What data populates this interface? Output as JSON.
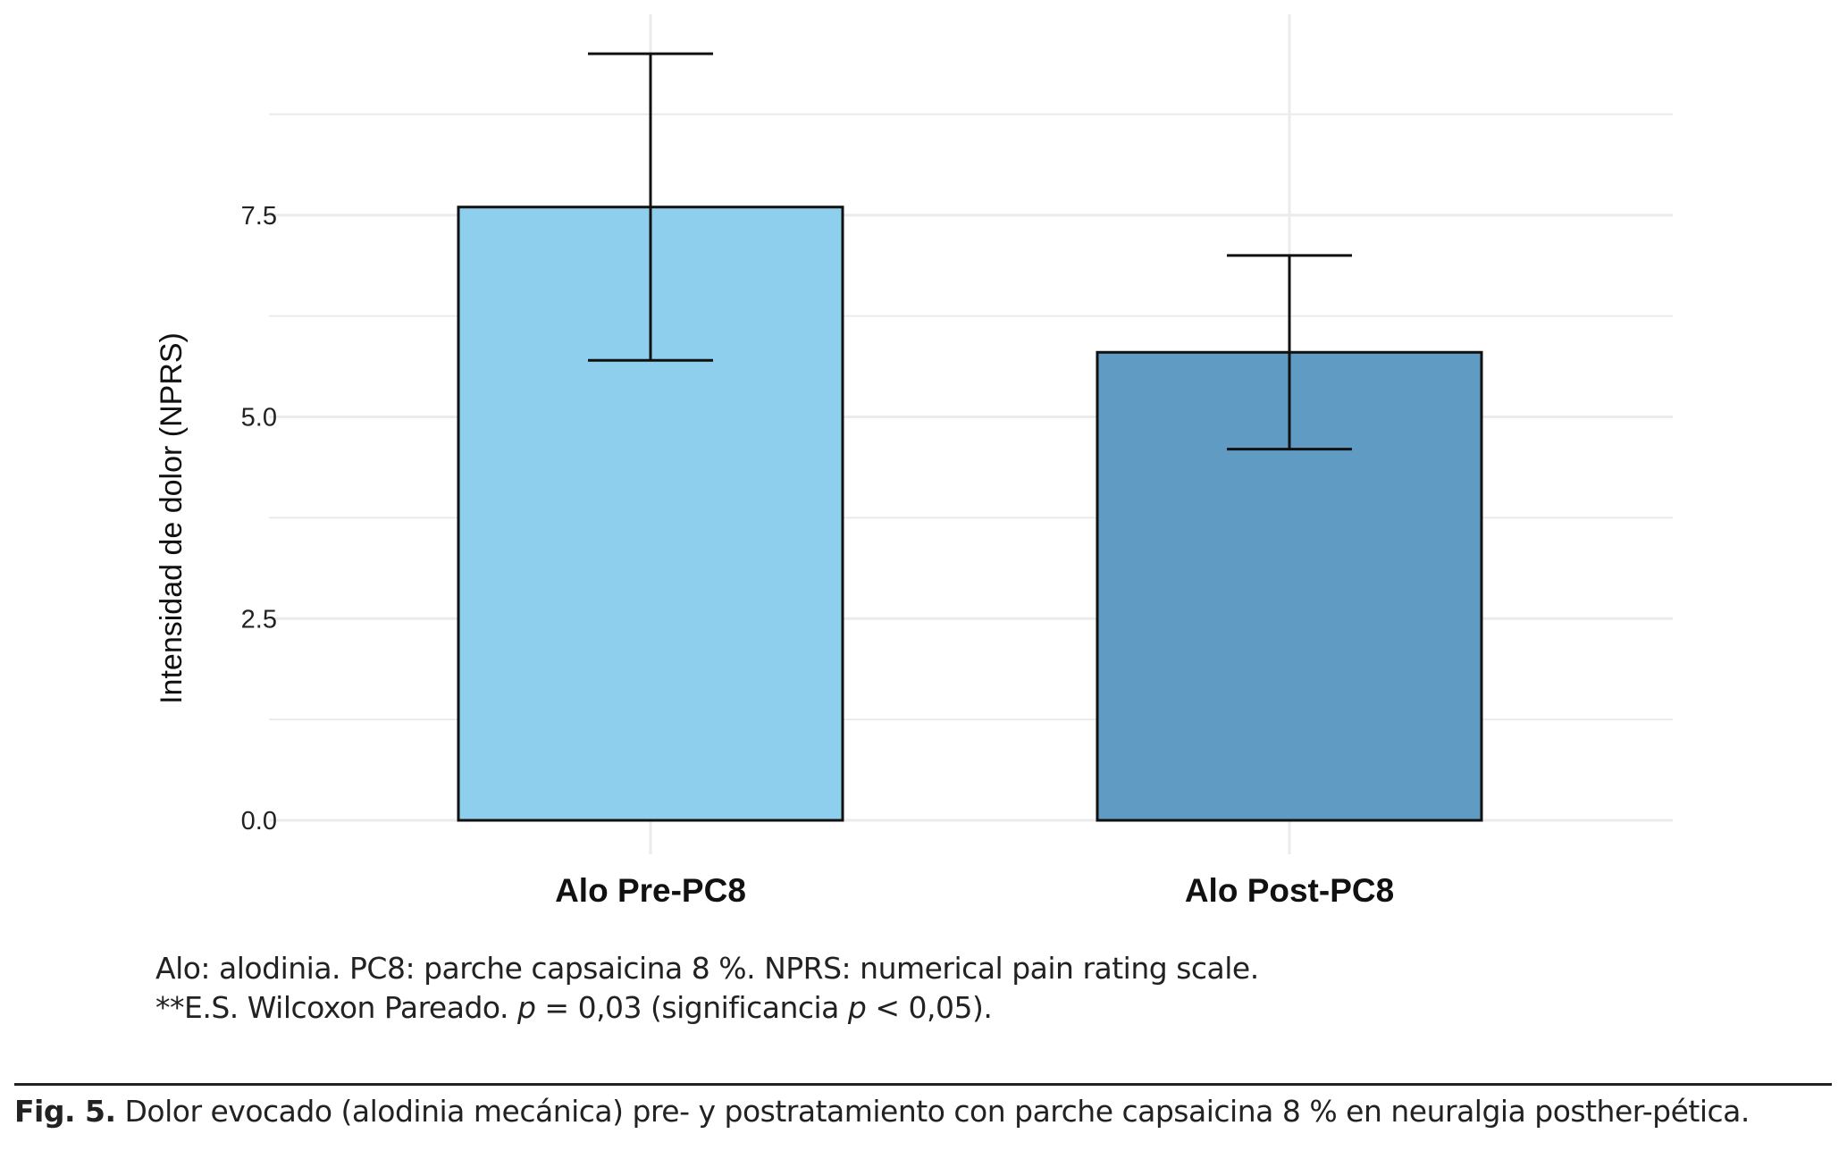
{
  "chart_data": {
    "type": "bar",
    "categories": [
      "Alo Pre-PC8",
      "Alo Post-PC8"
    ],
    "values": [
      7.6,
      5.8
    ],
    "error_bars": [
      {
        "lower": 5.7,
        "upper": 9.5
      },
      {
        "lower": 4.6,
        "upper": 7.0
      }
    ],
    "colors": [
      "#8ecfee",
      "#5f9bc2"
    ],
    "title": "",
    "xlabel": "",
    "ylabel": "Intensidad de dolor (NPRS)",
    "ylim": [
      0,
      10
    ],
    "yticks": [
      "0.0",
      "2.5",
      "5.0",
      "7.5"
    ],
    "grid": true,
    "legend": "none"
  },
  "notes": {
    "line1": "Alo: alodinia. PC8: parche capsaicina 8 %. NPRS: numerical pain rating scale.",
    "line2_prefix": "**E.S. Wilcoxon Pareado. ",
    "line2_p1": "p",
    "line2_mid": " = 0,03 (significancia ",
    "line2_p2": "p",
    "line2_suffix": " < 0,05)."
  },
  "figure_caption": {
    "label": "Fig. 5.",
    "text": " Dolor evocado (alodinia mecánica)  pre- y postratamiento con parche capsaicina 8 % en neuralgia posther-pética."
  }
}
